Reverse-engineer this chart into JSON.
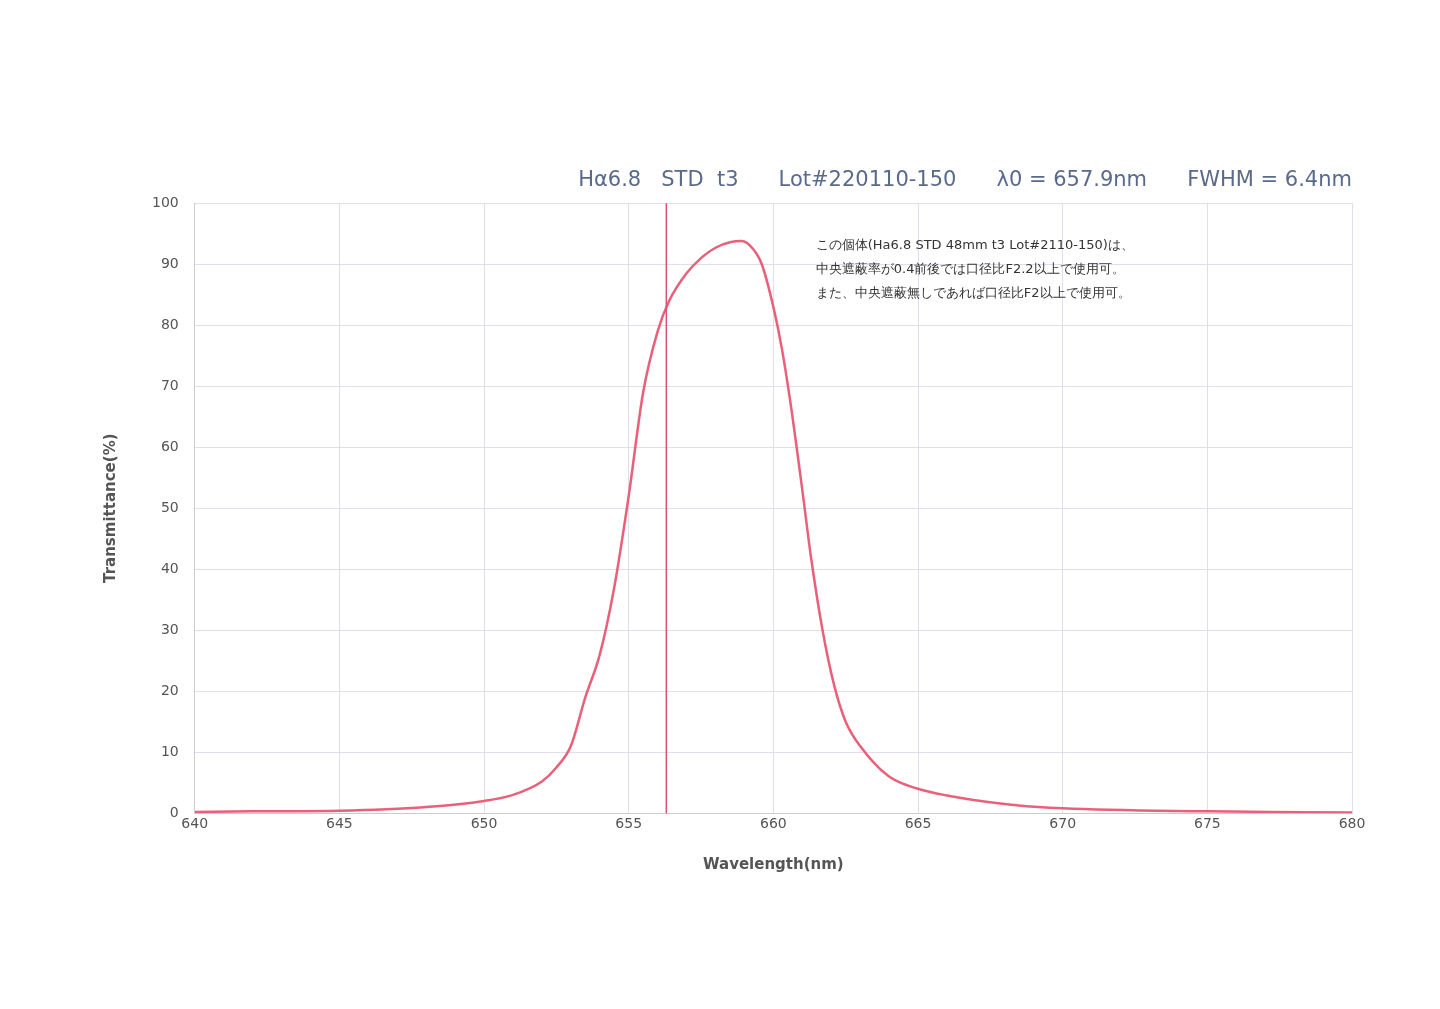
{
  "chart_data": {
    "type": "line",
    "title": "Hα6.8   STD  t3      Lot#220110-150      λ0 = 657.9nm      FWHM = 6.4nm",
    "xlabel": "Wavelength(nm)",
    "ylabel": "Transmittance(%)",
    "x": [
      640,
      642,
      645,
      648,
      650,
      651,
      652,
      652.5,
      653,
      653.5,
      654,
      654.5,
      655,
      655.5,
      656,
      656.4,
      657,
      657.5,
      658,
      658.5,
      658.9,
      659.3,
      659.6,
      660,
      660.3,
      660.6,
      661,
      661.3,
      661.7,
      662.1,
      662.5,
      663,
      664,
      665,
      666,
      668,
      670,
      675,
      680
    ],
    "series": [
      {
        "color": "#e8607a",
        "values": [
          0.2,
          0.3,
          0.4,
          1.0,
          2.0,
          3.0,
          5.2,
          7.5,
          11,
          19,
          26,
          37,
          52,
          69,
          79,
          84,
          88.5,
          91,
          92.7,
          93.6,
          93.8,
          92.5,
          90,
          83,
          76,
          67,
          53,
          42,
          30,
          21,
          15,
          11,
          6,
          4,
          2.9,
          1.5,
          0.8,
          0.3,
          0.1
        ]
      }
    ],
    "xlim": [
      640,
      680
    ],
    "xticks": [
      640,
      645,
      650,
      655,
      660,
      665,
      670,
      675,
      680
    ],
    "ylim": [
      0,
      100
    ],
    "yticks": [
      0,
      10,
      20,
      30,
      40,
      50,
      60,
      70,
      80,
      90,
      100
    ],
    "ref_lines": [
      {
        "axis": "x",
        "value": 656.3,
        "color": "#e05070"
      }
    ],
    "annotations": [
      "この個体(Ha6.8 STD 48mm t3 Lot#2110-150)は、",
      "中央遮蔽率が0.4前後では口径比F2.2以上で使用可。",
      "また、中央遮蔽無しであれば口径比F2以上で使用可。"
    ],
    "grid": true,
    "marker": "none",
    "line_style": "solid"
  }
}
